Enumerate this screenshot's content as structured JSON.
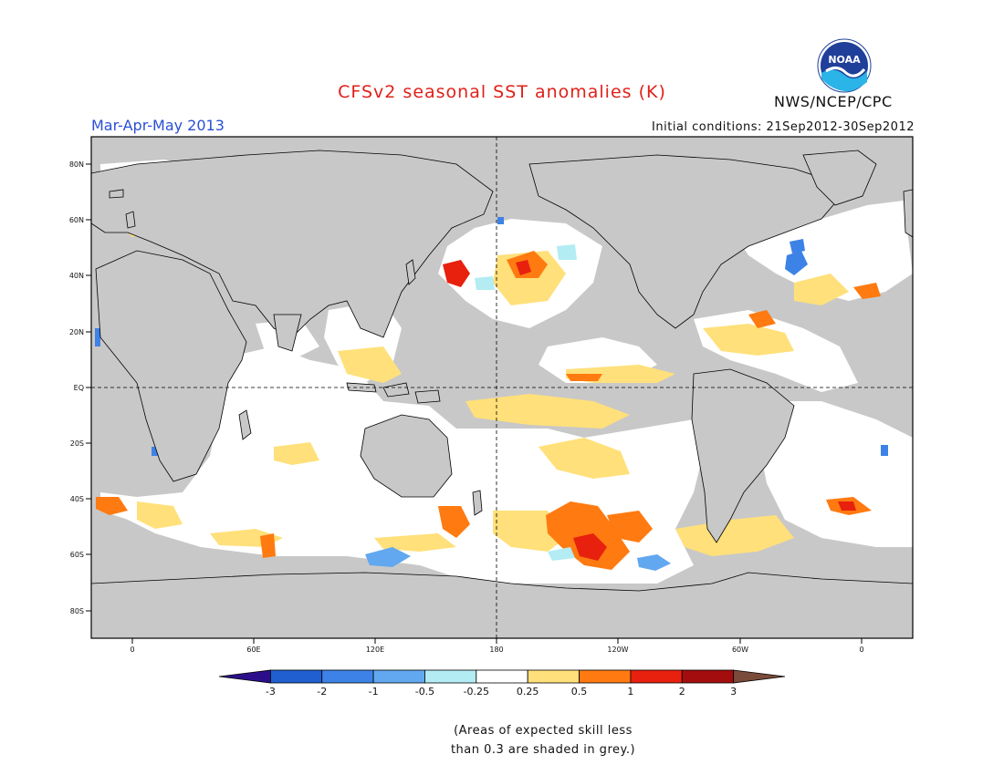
{
  "title": "CFSv2 seasonal SST anomalies (K)",
  "season": "Mar-Apr-May 2013",
  "initial_conditions": "Initial conditions: 21Sep2012-30Sep2012",
  "organization": "NWS/NCEP/CPC",
  "logo_text": "NOAA",
  "footnote": {
    "line1": "(Areas of expected skill less",
    "line2": "than 0.3 are shaded in grey.)"
  },
  "lat_labels": [
    "80N",
    "60N",
    "40N",
    "20N",
    "EQ",
    "20S",
    "40S",
    "60S",
    "80S"
  ],
  "lon_labels": [
    "0",
    "60E",
    "120E",
    "180",
    "120W",
    "60W",
    "0"
  ],
  "colorbar": {
    "ticks": [
      "-3",
      "-2",
      "-1",
      "-0.5",
      "-0.25",
      "0.25",
      "0.5",
      "1",
      "2",
      "3"
    ],
    "colors": [
      "#2b0f8a",
      "#1f5fcf",
      "#3d82e6",
      "#62a8f0",
      "#b3ecf3",
      "#ffffff",
      "#ffe07a",
      "#ff7a10",
      "#e8200e",
      "#a30d0d",
      "#7a4a3a"
    ]
  },
  "colors": {
    "land": "#c8c8c8",
    "grey_skill": "#c8c8c8",
    "ocean_skill": "#ffffff",
    "coast": "#000000"
  }
}
